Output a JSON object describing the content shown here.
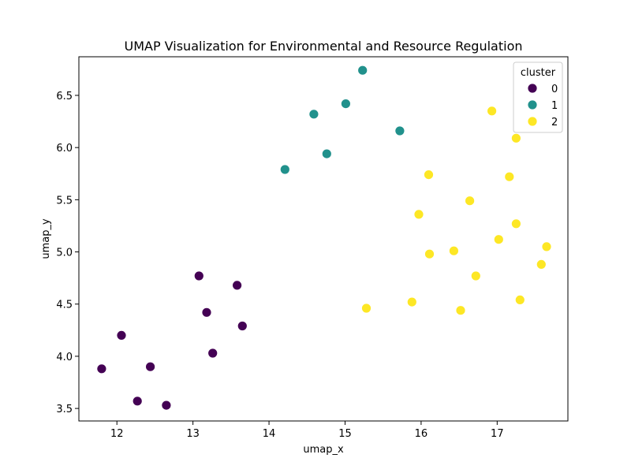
{
  "chart_data": {
    "type": "scatter",
    "title": "UMAP Visualization for Environmental and Resource Regulation",
    "xlabel": "umap_x",
    "ylabel": "umap_y",
    "xlim": [
      11.5,
      17.93
    ],
    "ylim": [
      3.38,
      6.87
    ],
    "xticks": [
      12,
      13,
      14,
      15,
      16,
      17
    ],
    "yticks": [
      3.5,
      4.0,
      4.5,
      5.0,
      5.5,
      6.0,
      6.5
    ],
    "ytick_labels": [
      "3.5",
      "4.0",
      "4.5",
      "5.0",
      "5.5",
      "6.0",
      "6.5"
    ],
    "grid": false,
    "legend": {
      "title": "cluster",
      "placement": "top-right"
    },
    "series": [
      {
        "name": "0",
        "color": "#440154",
        "points": [
          {
            "x": 11.8,
            "y": 3.88
          },
          {
            "x": 12.06,
            "y": 4.2
          },
          {
            "x": 12.27,
            "y": 3.57
          },
          {
            "x": 12.44,
            "y": 3.9
          },
          {
            "x": 12.65,
            "y": 3.53
          },
          {
            "x": 13.08,
            "y": 4.77
          },
          {
            "x": 13.18,
            "y": 4.42
          },
          {
            "x": 13.26,
            "y": 4.03
          },
          {
            "x": 13.58,
            "y": 4.68
          },
          {
            "x": 13.65,
            "y": 4.29
          }
        ]
      },
      {
        "name": "1",
        "color": "#21918c",
        "points": [
          {
            "x": 14.21,
            "y": 5.79
          },
          {
            "x": 14.59,
            "y": 6.32
          },
          {
            "x": 14.76,
            "y": 5.94
          },
          {
            "x": 15.01,
            "y": 6.42
          },
          {
            "x": 15.23,
            "y": 6.74
          },
          {
            "x": 15.72,
            "y": 6.16
          }
        ]
      },
      {
        "name": "2",
        "color": "#fde725",
        "points": [
          {
            "x": 15.28,
            "y": 4.46
          },
          {
            "x": 15.88,
            "y": 4.52
          },
          {
            "x": 15.97,
            "y": 5.36
          },
          {
            "x": 16.1,
            "y": 5.74
          },
          {
            "x": 16.11,
            "y": 4.98
          },
          {
            "x": 16.43,
            "y": 5.01
          },
          {
            "x": 16.52,
            "y": 4.44
          },
          {
            "x": 16.64,
            "y": 5.49
          },
          {
            "x": 16.72,
            "y": 4.77
          },
          {
            "x": 16.93,
            "y": 6.35
          },
          {
            "x": 17.02,
            "y": 5.12
          },
          {
            "x": 17.16,
            "y": 5.72
          },
          {
            "x": 17.25,
            "y": 6.09
          },
          {
            "x": 17.25,
            "y": 5.27
          },
          {
            "x": 17.3,
            "y": 4.54
          },
          {
            "x": 17.58,
            "y": 4.88
          },
          {
            "x": 17.65,
            "y": 5.05
          }
        ]
      }
    ]
  }
}
